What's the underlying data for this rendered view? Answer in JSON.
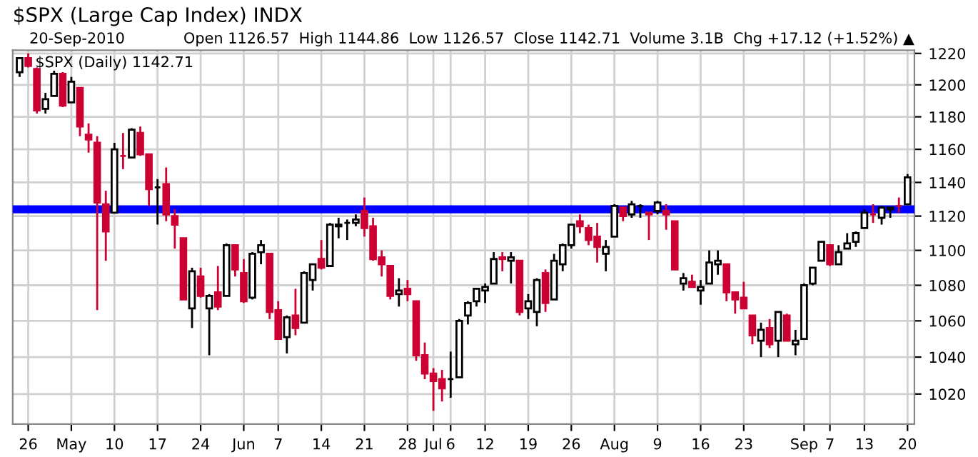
{
  "chart_data": {
    "type": "candlestick",
    "title": "$SPX (Large Cap Index) INDX",
    "subtitle": "20-Sep-2010",
    "annotations": [
      "Open 1126.57  High 1144.86  Low 1126.57  Close 1142.71  Volume 3.1B  Chg +17.12 (+1.52%) ▲",
      "$SPX (Daily) 1142.71"
    ],
    "categories": [
      null,
      "26",
      null,
      null,
      null,
      null,
      "May",
      null,
      null,
      null,
      null,
      "10",
      null,
      null,
      null,
      null,
      "17",
      null,
      null,
      null,
      null,
      "24",
      null,
      null,
      null,
      null,
      "Jun",
      null,
      null,
      null,
      "7",
      null,
      null,
      null,
      null,
      "14",
      null,
      null,
      null,
      null,
      "21",
      null,
      null,
      null,
      null,
      "28",
      null,
      null,
      "Jul",
      null,
      "6",
      null,
      null,
      null,
      "12",
      null,
      null,
      null,
      null,
      "19",
      null,
      null,
      null,
      null,
      "26",
      null,
      null,
      null,
      null,
      "Aug",
      null,
      null,
      null,
      null,
      "9",
      null,
      null,
      null,
      null,
      "16",
      null,
      null,
      null,
      null,
      "23",
      null,
      null,
      null,
      null,
      null,
      null,
      "Sep",
      null,
      null,
      "7",
      null,
      null,
      null,
      "13",
      null,
      null,
      null,
      null,
      "20"
    ],
    "ohlc": [
      [
        1208,
        1217,
        1205,
        1217
      ],
      [
        1217,
        1220,
        1211,
        1212
      ],
      [
        1210,
        1211,
        1182,
        1184
      ],
      [
        1185,
        1195,
        1182,
        1191
      ],
      [
        1193,
        1209,
        1193,
        1207
      ],
      [
        1207,
        1208,
        1186,
        1187
      ],
      [
        1189,
        1205,
        1189,
        1202
      ],
      [
        1198,
        1198,
        1168,
        1174
      ],
      [
        1169,
        1176,
        1158,
        1166
      ],
      [
        1164,
        1168,
        1066,
        1128
      ],
      [
        1127,
        1135,
        1094,
        1111
      ],
      [
        1122,
        1164,
        1122,
        1160
      ],
      [
        1156,
        1170,
        1148,
        1156
      ],
      [
        1155,
        1173,
        1155,
        1172
      ],
      [
        1170,
        1174,
        1156,
        1157
      ],
      [
        1157,
        1157,
        1126,
        1136
      ],
      [
        1137,
        1142,
        1115,
        1137
      ],
      [
        1139,
        1149,
        1117,
        1121
      ],
      [
        1120,
        1124,
        1101,
        1115
      ],
      [
        1107,
        1107,
        1072,
        1072
      ],
      [
        1067,
        1090,
        1056,
        1088
      ],
      [
        1085,
        1090,
        1073,
        1074
      ],
      [
        1067,
        1075,
        1041,
        1074
      ],
      [
        1076,
        1091,
        1066,
        1068
      ],
      [
        1074,
        1104,
        1074,
        1103
      ],
      [
        1103,
        1103,
        1085,
        1089
      ],
      [
        1087,
        1095,
        1070,
        1071
      ],
      [
        1073,
        1099,
        1072,
        1098
      ],
      [
        1099,
        1106,
        1092,
        1103
      ],
      [
        1098,
        1098,
        1061,
        1065
      ],
      [
        1066,
        1071,
        1050,
        1050
      ],
      [
        1051,
        1063,
        1042,
        1062
      ],
      [
        1063,
        1078,
        1052,
        1056
      ],
      [
        1059,
        1088,
        1059,
        1087
      ],
      [
        1083,
        1092,
        1077,
        1092
      ],
      [
        1095,
        1106,
        1089,
        1090
      ],
      [
        1091,
        1116,
        1091,
        1115
      ],
      [
        1114,
        1119,
        1107,
        1115
      ],
      [
        1116,
        1118,
        1106,
        1116
      ],
      [
        1116,
        1121,
        1114,
        1118
      ],
      [
        1123,
        1131,
        1108,
        1113
      ],
      [
        1114,
        1119,
        1094,
        1095
      ],
      [
        1096,
        1100,
        1085,
        1092
      ],
      [
        1091,
        1091,
        1072,
        1074
      ],
      [
        1075,
        1084,
        1068,
        1077
      ],
      [
        1078,
        1083,
        1071,
        1075
      ],
      [
        1071,
        1071,
        1038,
        1041
      ],
      [
        1041,
        1048,
        1028,
        1031
      ],
      [
        1031,
        1034,
        1011,
        1027
      ],
      [
        1028,
        1033,
        1016,
        1023
      ],
      [
        1028,
        1043,
        1018,
        1028
      ],
      [
        1029,
        1061,
        1029,
        1060
      ],
      [
        1063,
        1071,
        1058,
        1070
      ],
      [
        1071,
        1078,
        1068,
        1078
      ],
      [
        1077,
        1081,
        1070,
        1079
      ],
      [
        1081,
        1099,
        1081,
        1095
      ],
      [
        1096,
        1099,
        1088,
        1095
      ],
      [
        1094,
        1099,
        1081,
        1096
      ],
      [
        1094,
        1094,
        1063,
        1065
      ],
      [
        1067,
        1075,
        1061,
        1071
      ],
      [
        1065,
        1084,
        1057,
        1083
      ],
      [
        1087,
        1089,
        1065,
        1070
      ],
      [
        1072,
        1098,
        1072,
        1094
      ],
      [
        1092,
        1104,
        1088,
        1103
      ],
      [
        1103,
        1115,
        1101,
        1115
      ],
      [
        1117,
        1121,
        1110,
        1114
      ],
      [
        1113,
        1115,
        1103,
        1106
      ],
      [
        1108,
        1116,
        1093,
        1102
      ],
      [
        1098,
        1106,
        1088,
        1102
      ],
      [
        1108,
        1127,
        1108,
        1126
      ],
      [
        1125,
        1125,
        1117,
        1120
      ],
      [
        1121,
        1129,
        1119,
        1127
      ],
      [
        1126,
        1127,
        1119,
        1126
      ],
      [
        1122,
        1122,
        1106,
        1121
      ],
      [
        1123,
        1129,
        1121,
        1128
      ],
      [
        1123,
        1127,
        1112,
        1121
      ],
      [
        1117,
        1117,
        1089,
        1089
      ],
      [
        1081,
        1087,
        1077,
        1084
      ],
      [
        1082,
        1086,
        1079,
        1079
      ],
      [
        1077,
        1083,
        1069,
        1079
      ],
      [
        1081,
        1100,
        1081,
        1093
      ],
      [
        1092,
        1100,
        1086,
        1094
      ],
      [
        1092,
        1092,
        1071,
        1076
      ],
      [
        1076,
        1076,
        1064,
        1072
      ],
      [
        1073,
        1082,
        1067,
        1067
      ],
      [
        1063,
        1063,
        1047,
        1052
      ],
      [
        1049,
        1059,
        1040,
        1055
      ],
      [
        1056,
        1061,
        1045,
        1047
      ],
      [
        1049,
        1065,
        1040,
        1065
      ],
      [
        1063,
        1064,
        1049,
        1049
      ],
      [
        1047,
        1055,
        1041,
        1049
      ],
      [
        1050,
        1081,
        1050,
        1080
      ],
      [
        1081,
        1090,
        1080,
        1090
      ],
      [
        1094,
        1105,
        1094,
        1105
      ],
      [
        1103,
        1103,
        1091,
        1092
      ],
      [
        1092,
        1103,
        1092,
        1099
      ],
      [
        1101,
        1110,
        1101,
        1104
      ],
      [
        1105,
        1111,
        1102,
        1110
      ],
      [
        1113,
        1124,
        1113,
        1122
      ],
      [
        1121,
        1127,
        1116,
        1121
      ],
      [
        1119,
        1126,
        1115,
        1125
      ],
      [
        1124,
        1125,
        1119,
        1125
      ],
      [
        1126,
        1131,
        1122,
        1126
      ],
      [
        1127,
        1145,
        1127,
        1143
      ]
    ],
    "colors": [
      "#000000",
      "#cc0033",
      "#cc0033",
      "#000000",
      "#000000",
      "#cc0033",
      "#000000",
      "#cc0033",
      "#cc0033",
      "#cc0033",
      "#cc0033",
      "#000000",
      "#cc0033",
      "#000000",
      "#cc0033",
      "#cc0033",
      "#000000",
      "#cc0033",
      "#cc0033",
      "#cc0033",
      "#000000",
      "#cc0033",
      "#000000",
      "#cc0033",
      "#000000",
      "#cc0033",
      "#cc0033",
      "#000000",
      "#000000",
      "#cc0033",
      "#cc0033",
      "#000000",
      "#cc0033",
      "#000000",
      "#000000",
      "#cc0033",
      "#000000",
      "#000000",
      "#000000",
      "#000000",
      "#cc0033",
      "#cc0033",
      "#cc0033",
      "#cc0033",
      "#000000",
      "#cc0033",
      "#cc0033",
      "#cc0033",
      "#cc0033",
      "#cc0033",
      "#000000",
      "#000000",
      "#000000",
      "#000000",
      "#000000",
      "#000000",
      "#cc0033",
      "#000000",
      "#cc0033",
      "#000000",
      "#000000",
      "#cc0033",
      "#000000",
      "#000000",
      "#000000",
      "#cc0033",
      "#cc0033",
      "#cc0033",
      "#000000",
      "#000000",
      "#cc0033",
      "#000000",
      "#000000",
      "#cc0033",
      "#000000",
      "#cc0033",
      "#cc0033",
      "#000000",
      "#cc0033",
      "#000000",
      "#000000",
      "#000000",
      "#cc0033",
      "#cc0033",
      "#cc0033",
      "#cc0033",
      "#000000",
      "#cc0033",
      "#000000",
      "#cc0033",
      "#000000",
      "#000000",
      "#000000",
      "#000000",
      "#cc0033",
      "#000000",
      "#000000",
      "#000000",
      "#000000",
      "#cc0033",
      "#000000",
      "#000000",
      "#cc0033",
      "#000000"
    ],
    "log": true,
    "ylim": [
      1004,
      1222
    ],
    "yticks": [
      1020,
      1040,
      1060,
      1080,
      1100,
      1120,
      1140,
      1160,
      1180,
      1200,
      1220
    ],
    "grid": true,
    "ref_lines": [
      {
        "axis": "y",
        "value": 1124,
        "color": "#0000ff"
      }
    ]
  }
}
